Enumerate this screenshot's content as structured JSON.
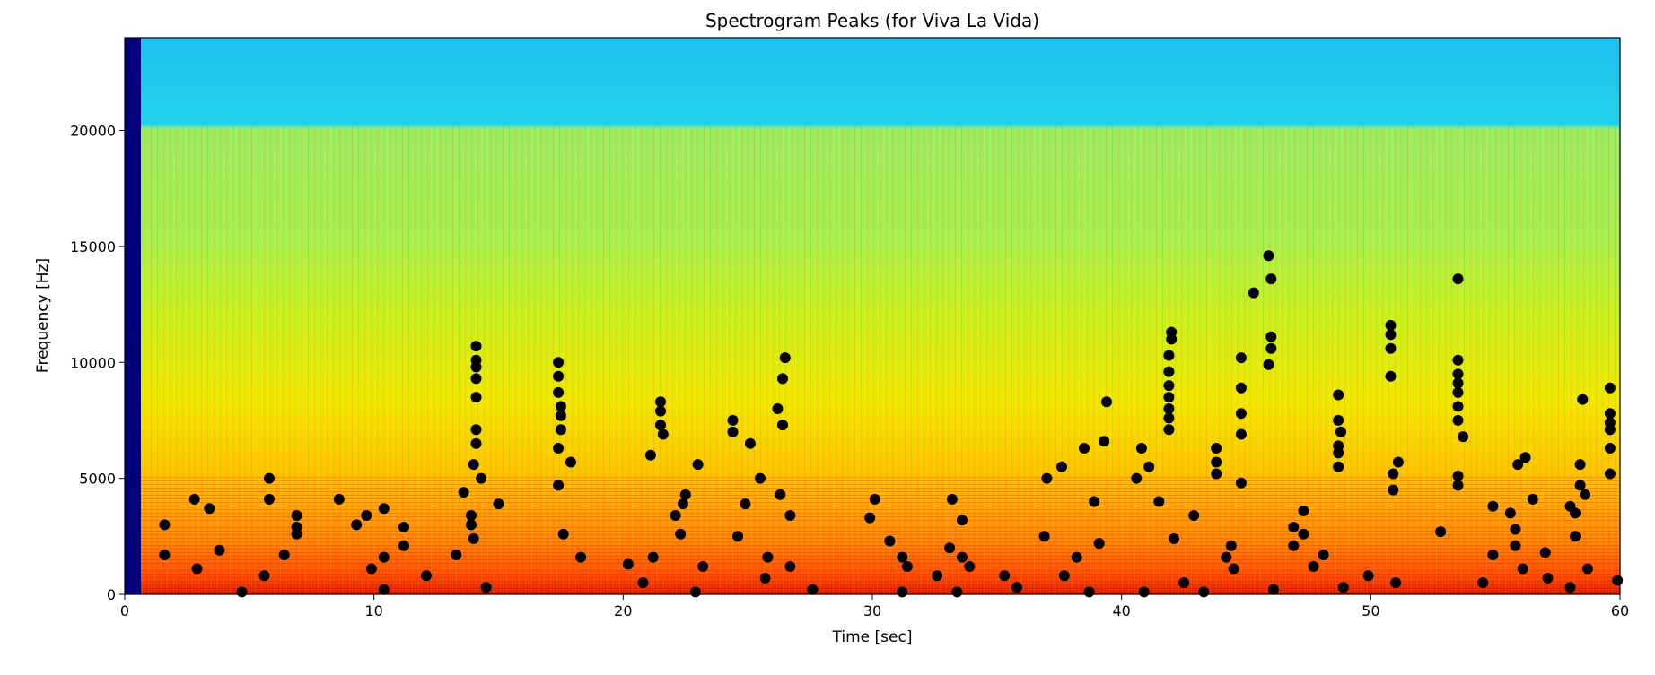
{
  "chart_data": {
    "type": "scatter",
    "title": "Spectrogram Peaks (for Viva La Vida)",
    "xlabel": "Time [sec]",
    "ylabel": "Frequency [Hz]",
    "xlim": [
      0,
      60
    ],
    "ylim": [
      0,
      24000
    ],
    "xticks": [
      0,
      10,
      20,
      30,
      40,
      50,
      60
    ],
    "yticks": [
      0,
      5000,
      10000,
      15000,
      20000
    ],
    "grid": false,
    "background": "spectrogram (jet colormap)",
    "marker_color": "#000000",
    "series": [
      {
        "points": [
          [
            1.6,
            3000
          ],
          [
            1.6,
            1700
          ],
          [
            2.8,
            4100
          ],
          [
            2.9,
            1100
          ],
          [
            3.4,
            3700
          ],
          [
            3.8,
            1900
          ],
          [
            4.7,
            100
          ],
          [
            5.6,
            800
          ],
          [
            5.8,
            5000
          ],
          [
            5.8,
            4100
          ],
          [
            6.4,
            1700
          ],
          [
            6.9,
            3400
          ],
          [
            6.9,
            2900
          ],
          [
            6.9,
            2600
          ],
          [
            8.6,
            4100
          ],
          [
            9.3,
            3000
          ],
          [
            9.7,
            3400
          ],
          [
            9.9,
            1100
          ],
          [
            10.4,
            3700
          ],
          [
            10.4,
            1600
          ],
          [
            10.4,
            200
          ],
          [
            11.2,
            2900
          ],
          [
            11.2,
            2100
          ],
          [
            12.1,
            800
          ],
          [
            13.3,
            1700
          ],
          [
            13.6,
            4400
          ],
          [
            13.9,
            3400
          ],
          [
            13.9,
            3000
          ],
          [
            14.0,
            2400
          ],
          [
            14.0,
            5600
          ],
          [
            14.1,
            6500
          ],
          [
            14.1,
            7100
          ],
          [
            14.1,
            8500
          ],
          [
            14.1,
            9300
          ],
          [
            14.1,
            9800
          ],
          [
            14.1,
            10100
          ],
          [
            14.1,
            10700
          ],
          [
            14.3,
            5000
          ],
          [
            14.5,
            300
          ],
          [
            15.0,
            3900
          ],
          [
            17.4,
            10000
          ],
          [
            17.4,
            9400
          ],
          [
            17.4,
            8700
          ],
          [
            17.5,
            8100
          ],
          [
            17.5,
            7700
          ],
          [
            17.5,
            7100
          ],
          [
            17.4,
            6300
          ],
          [
            17.4,
            4700
          ],
          [
            17.6,
            2600
          ],
          [
            17.9,
            5700
          ],
          [
            18.3,
            1600
          ],
          [
            20.2,
            1300
          ],
          [
            20.8,
            500
          ],
          [
            21.1,
            6000
          ],
          [
            21.2,
            1600
          ],
          [
            21.5,
            8300
          ],
          [
            21.5,
            7900
          ],
          [
            21.5,
            7300
          ],
          [
            21.6,
            6900
          ],
          [
            22.1,
            3400
          ],
          [
            22.3,
            2600
          ],
          [
            22.4,
            3900
          ],
          [
            22.5,
            4300
          ],
          [
            22.9,
            100
          ],
          [
            23.0,
            5600
          ],
          [
            23.2,
            1200
          ],
          [
            24.4,
            7500
          ],
          [
            24.4,
            7000
          ],
          [
            24.6,
            2500
          ],
          [
            24.9,
            3900
          ],
          [
            25.1,
            6500
          ],
          [
            25.5,
            5000
          ],
          [
            25.7,
            700
          ],
          [
            25.8,
            1600
          ],
          [
            26.2,
            8000
          ],
          [
            26.3,
            4300
          ],
          [
            26.4,
            7300
          ],
          [
            26.4,
            9300
          ],
          [
            26.5,
            10200
          ],
          [
            26.7,
            3400
          ],
          [
            26.7,
            1200
          ],
          [
            27.6,
            200
          ],
          [
            29.9,
            3300
          ],
          [
            30.1,
            4100
          ],
          [
            30.7,
            2300
          ],
          [
            31.2,
            1600
          ],
          [
            31.2,
            100
          ],
          [
            31.4,
            1200
          ],
          [
            32.6,
            800
          ],
          [
            33.1,
            2000
          ],
          [
            33.2,
            4100
          ],
          [
            33.4,
            100
          ],
          [
            33.6,
            3200
          ],
          [
            33.6,
            1600
          ],
          [
            33.9,
            1200
          ],
          [
            35.3,
            800
          ],
          [
            35.8,
            300
          ],
          [
            36.9,
            2500
          ],
          [
            37.0,
            5000
          ],
          [
            37.6,
            5500
          ],
          [
            37.7,
            800
          ],
          [
            38.2,
            1600
          ],
          [
            38.5,
            6300
          ],
          [
            38.7,
            100
          ],
          [
            38.9,
            4000
          ],
          [
            39.1,
            2200
          ],
          [
            39.3,
            6600
          ],
          [
            39.4,
            8300
          ],
          [
            40.6,
            5000
          ],
          [
            40.8,
            6300
          ],
          [
            40.9,
            100
          ],
          [
            41.1,
            5500
          ],
          [
            41.5,
            4000
          ],
          [
            41.9,
            7100
          ],
          [
            41.9,
            7600
          ],
          [
            41.9,
            8000
          ],
          [
            41.9,
            8500
          ],
          [
            41.9,
            9000
          ],
          [
            41.9,
            9600
          ],
          [
            41.9,
            10300
          ],
          [
            42.0,
            11000
          ],
          [
            42.0,
            11300
          ],
          [
            42.1,
            2400
          ],
          [
            42.5,
            500
          ],
          [
            42.9,
            3400
          ],
          [
            43.3,
            100
          ],
          [
            43.8,
            6300
          ],
          [
            43.8,
            5700
          ],
          [
            43.8,
            5200
          ],
          [
            44.2,
            1600
          ],
          [
            44.4,
            2100
          ],
          [
            44.5,
            1100
          ],
          [
            44.8,
            10200
          ],
          [
            44.8,
            8900
          ],
          [
            44.8,
            7800
          ],
          [
            44.8,
            6900
          ],
          [
            44.8,
            4800
          ],
          [
            45.3,
            13000
          ],
          [
            45.9,
            14600
          ],
          [
            45.9,
            9900
          ],
          [
            46.0,
            13600
          ],
          [
            46.0,
            11100
          ],
          [
            46.0,
            10600
          ],
          [
            46.1,
            200
          ],
          [
            46.9,
            2900
          ],
          [
            46.9,
            2100
          ],
          [
            47.3,
            3600
          ],
          [
            47.3,
            2600
          ],
          [
            47.7,
            1200
          ],
          [
            48.1,
            1700
          ],
          [
            48.7,
            8600
          ],
          [
            48.7,
            7500
          ],
          [
            48.8,
            7000
          ],
          [
            48.7,
            6400
          ],
          [
            48.7,
            6100
          ],
          [
            48.7,
            5500
          ],
          [
            48.9,
            300
          ],
          [
            49.9,
            800
          ],
          [
            50.8,
            11600
          ],
          [
            50.8,
            11200
          ],
          [
            50.8,
            10600
          ],
          [
            50.8,
            9400
          ],
          [
            50.9,
            5200
          ],
          [
            50.9,
            4500
          ],
          [
            51.1,
            5700
          ],
          [
            51.0,
            500
          ],
          [
            52.8,
            2700
          ],
          [
            53.5,
            13600
          ],
          [
            53.5,
            10100
          ],
          [
            53.5,
            9500
          ],
          [
            53.5,
            9100
          ],
          [
            53.5,
            8700
          ],
          [
            53.5,
            8100
          ],
          [
            53.5,
            7500
          ],
          [
            53.5,
            5100
          ],
          [
            53.5,
            4700
          ],
          [
            53.7,
            6800
          ],
          [
            54.5,
            500
          ],
          [
            54.9,
            3800
          ],
          [
            54.9,
            1700
          ],
          [
            55.6,
            3500
          ],
          [
            55.8,
            2800
          ],
          [
            55.8,
            2100
          ],
          [
            55.9,
            5600
          ],
          [
            56.1,
            1100
          ],
          [
            56.2,
            5900
          ],
          [
            56.5,
            4100
          ],
          [
            57.0,
            1800
          ],
          [
            57.1,
            700
          ],
          [
            58.0,
            3800
          ],
          [
            58.0,
            300
          ],
          [
            58.2,
            3500
          ],
          [
            58.2,
            2500
          ],
          [
            58.4,
            5600
          ],
          [
            58.4,
            4700
          ],
          [
            58.5,
            8400
          ],
          [
            58.6,
            4300
          ],
          [
            58.7,
            1100
          ],
          [
            59.6,
            8900
          ],
          [
            59.6,
            7800
          ],
          [
            59.6,
            7400
          ],
          [
            59.6,
            7100
          ],
          [
            59.6,
            6300
          ],
          [
            59.6,
            5200
          ],
          [
            59.9,
            600
          ]
        ]
      }
    ]
  }
}
